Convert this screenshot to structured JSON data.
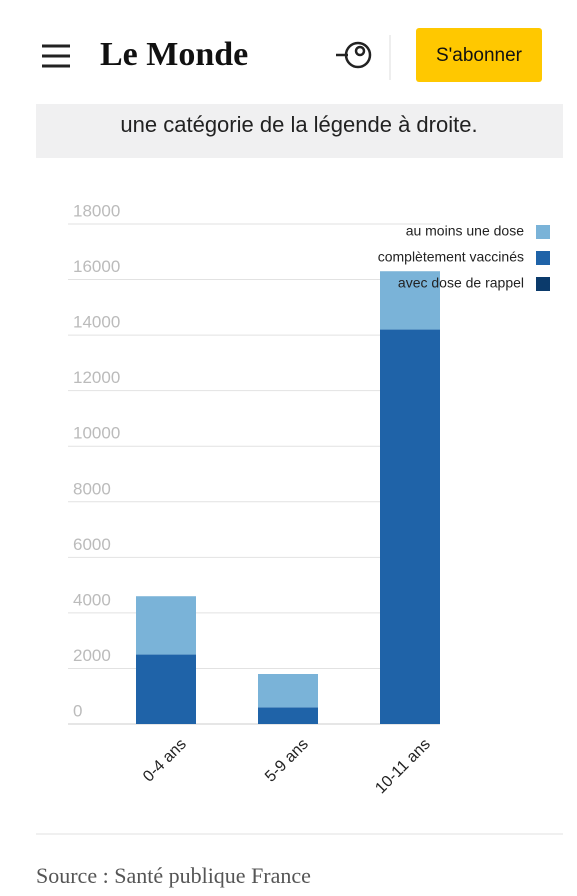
{
  "page": {
    "logo": "Le Monde",
    "subscribe": "S'abonner",
    "intro": "une catégorie de la légende à droite.",
    "source": "Source : Santé publique France"
  },
  "chart_data": {
    "type": "stacked-bar",
    "categories": [
      "0-4 ans",
      "5-9 ans",
      "10-11 ans"
    ],
    "series": [
      {
        "name": "au moins une dose",
        "color": "#7ab3d8",
        "values": [
          2100,
          1200,
          2100
        ]
      },
      {
        "name": "complètement vaccinés",
        "color": "#1f63a8",
        "values": [
          2500,
          600,
          14200
        ]
      },
      {
        "name": "avec dose de rappel",
        "color": "#0b3a6b",
        "values": [
          0,
          0,
          0
        ]
      }
    ],
    "ylim": [
      0,
      18000
    ],
    "yticks": [
      0,
      2000,
      4000,
      6000,
      8000,
      10000,
      12000,
      14000,
      16000,
      18000
    ],
    "grid": true,
    "legend": "top-right"
  }
}
